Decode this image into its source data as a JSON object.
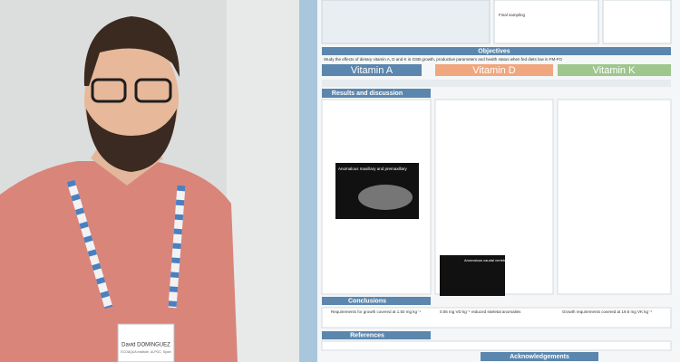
{
  "badge": {
    "name": "David DOMINGUEZ",
    "affiliation": "ECOAQUA Institute, ULPGC, Spain"
  },
  "poster": {
    "final_sampling": "Final sampling",
    "objectives_title": "Objectives",
    "objectives_text": "Study the effects of dietary vitamin A, D and K in GSB growth, productive parameters and health status when fed diets low in FM-FO",
    "columns": [
      "Vitamin A",
      "Vitamin D",
      "Vitamin K"
    ],
    "results_title": "Results and discussion",
    "figure_labels": [
      "Anomalous maxillary and premaxillary",
      "Anomalous caudal vertebrae"
    ],
    "conclusions_title": "Conclusions",
    "conclusions": [
      "Requirements for growth covered at 1.50 mg kg⁻¹",
      "0.06 mg VD kg⁻¹ reduced skeletal anomalies",
      "Growth requirements covered at 19.6 mg VK kg⁻¹"
    ],
    "references_title": "References",
    "acknowledgements_title": "Acknowledgements"
  }
}
